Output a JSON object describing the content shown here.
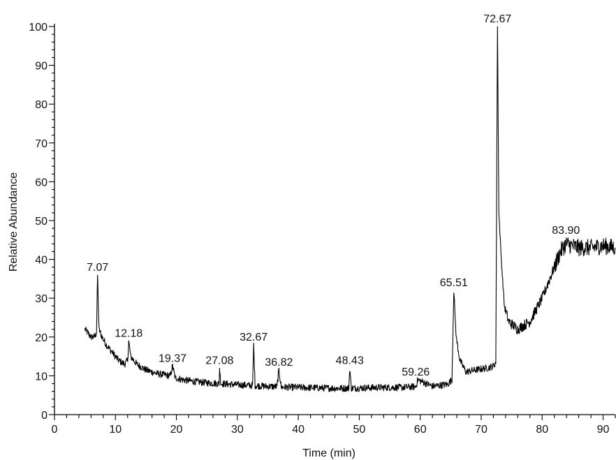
{
  "chart_data": {
    "type": "line",
    "title": "",
    "xlabel": "Time (min)",
    "ylabel": "Relative Abundance",
    "xlim": [
      0,
      92
    ],
    "ylim": [
      0,
      100
    ],
    "grid": false,
    "legend": "none",
    "x_ticks": [
      0,
      10,
      20,
      30,
      40,
      50,
      60,
      70,
      80,
      90
    ],
    "y_ticks": [
      0,
      10,
      20,
      30,
      40,
      50,
      60,
      70,
      80,
      90,
      100
    ],
    "trace_color": "#000000",
    "series": [
      {
        "x": [
          5.0,
          5.5,
          6.0,
          6.5,
          6.9,
          7.07,
          7.3,
          7.8,
          8.5,
          9.5,
          10.5,
          11.5,
          12.0,
          12.18,
          12.5,
          13.5,
          15.0,
          17.0,
          19.0,
          19.37,
          19.8,
          21.0,
          23.0,
          25.0,
          27.0,
          27.08,
          27.3,
          29.0,
          31.0,
          32.5,
          32.67,
          32.9,
          34.5,
          36.5,
          36.82,
          37.2,
          40.0,
          43.0,
          46.0,
          48.3,
          48.43,
          48.7,
          51.0,
          54.0,
          57.0,
          59.26,
          59.6,
          62.0,
          64.5,
          65.2,
          65.51,
          65.9,
          66.5,
          67.5,
          69.0,
          71.0,
          72.0,
          72.4,
          72.67,
          72.9,
          73.3,
          73.8,
          74.5,
          76.0,
          78.0,
          80.0,
          82.0,
          83.0,
          83.9,
          86.0,
          88.0,
          90.0,
          92.0
        ],
        "y": [
          22,
          21,
          20,
          20,
          21,
          36,
          22,
          20,
          18,
          16,
          14,
          13,
          14,
          19,
          15,
          13,
          11.5,
          10.5,
          10,
          12.5,
          9.5,
          9,
          8.5,
          8.2,
          8,
          12,
          8,
          7.8,
          7.6,
          7.5,
          18,
          7.5,
          7.3,
          7.2,
          11.5,
          7.1,
          7,
          6.9,
          6.8,
          6.8,
          12,
          6.8,
          6.9,
          7,
          7,
          7.2,
          9,
          7.3,
          7.8,
          9,
          32,
          20,
          14,
          11,
          11.5,
          12,
          12.5,
          13.5,
          100,
          52,
          40,
          28,
          24,
          22,
          24,
          30,
          38,
          42,
          44,
          43,
          43,
          43.5,
          43
        ]
      }
    ],
    "peak_labels": [
      {
        "x": 7.07,
        "y": 36,
        "text": "7.07"
      },
      {
        "x": 12.18,
        "y": 19,
        "text": "12.18"
      },
      {
        "x": 19.37,
        "y": 12.5,
        "text": "19.37"
      },
      {
        "x": 27.08,
        "y": 12,
        "text": "27.08"
      },
      {
        "x": 32.67,
        "y": 18,
        "text": "32.67"
      },
      {
        "x": 36.82,
        "y": 11.5,
        "text": "36.82"
      },
      {
        "x": 48.43,
        "y": 12,
        "text": "48.43"
      },
      {
        "x": 59.26,
        "y": 9,
        "text": "59.26"
      },
      {
        "x": 65.51,
        "y": 32,
        "text": "65.51"
      },
      {
        "x": 72.67,
        "y": 100,
        "text": "72.67"
      },
      {
        "x": 83.9,
        "y": 45.5,
        "text": "83.90"
      }
    ]
  }
}
